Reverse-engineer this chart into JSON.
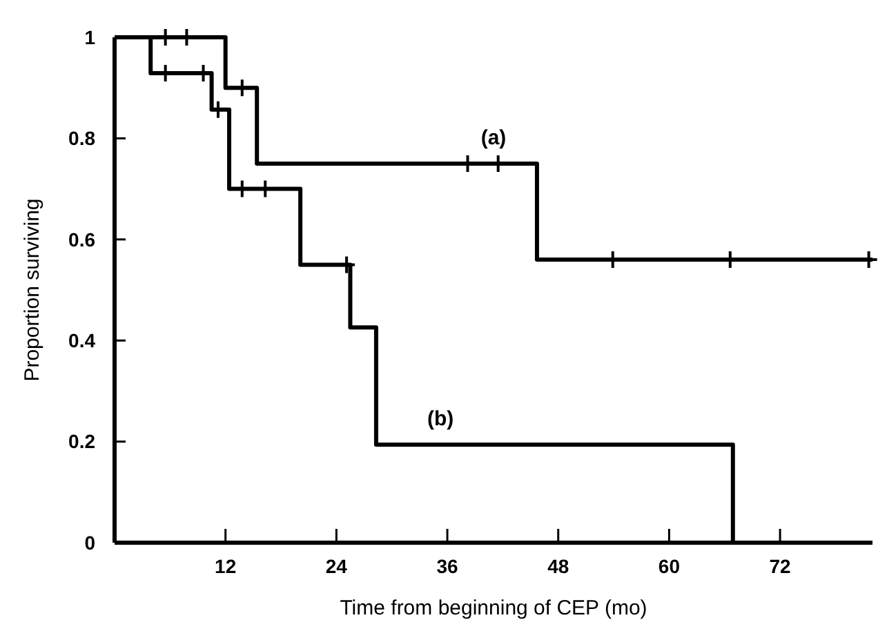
{
  "chart_data": {
    "type": "step",
    "xlabel": "Time from beginning of CEP (mo)",
    "ylabel": "Proportion surviving",
    "xlim": [
      0,
      82
    ],
    "xticks": [
      12,
      24,
      36,
      48,
      60,
      72
    ],
    "ylim": [
      0,
      1
    ],
    "yticks": [
      0,
      0.2,
      0.4,
      0.6,
      0.8,
      1
    ],
    "series": [
      {
        "color": "#000000",
        "x": [
          0,
          12,
          15.4,
          45.7,
          82
        ],
        "values": [
          1,
          0.9,
          0.75,
          0.56,
          0.56
        ]
      },
      {
        "color": "#000000",
        "x": [
          0,
          3.9,
          10.5,
          12.4,
          20.1,
          25.5,
          28.3,
          66.9,
          82
        ],
        "values": [
          1,
          0.929,
          0.857,
          0.7,
          0.55,
          0.426,
          0.194,
          0,
          0
        ]
      },
      {
        "type": "scatter",
        "marker": "cross",
        "color": "#000000",
        "x": [
          5.5,
          7.8,
          13.8,
          38.2,
          41.5,
          53.9,
          66.6,
          81.6
        ],
        "values": [
          1,
          1,
          0.9,
          0.75,
          0.75,
          0.56,
          0.56,
          0.56
        ]
      },
      {
        "type": "scatter",
        "marker": "cross",
        "color": "#000000",
        "x": [
          5.5,
          9.6,
          11.2,
          13.8,
          16.3,
          25.1
        ],
        "values": [
          0.929,
          0.929,
          0.857,
          0.7,
          0.7,
          0.55
        ]
      }
    ],
    "annotations": [
      "(a)",
      "(b)"
    ]
  }
}
